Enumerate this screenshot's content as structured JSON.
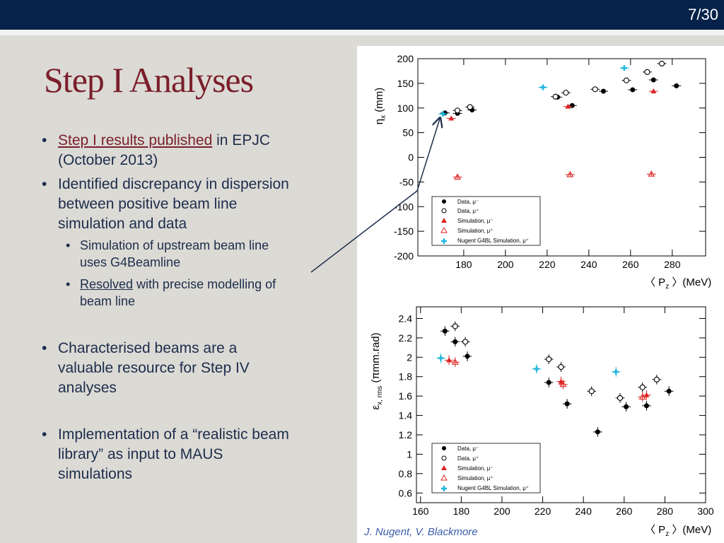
{
  "slide": {
    "number": "7/30",
    "title": "Step I Analyses",
    "credit": "J. Nugent, V. Blackmore"
  },
  "bullets": {
    "b1_link": "Step I results published",
    "b1_rest": " in EPJC",
    "b1_line2": "(October 2013)",
    "b2_l1": "Identified discrepancy in dispersion",
    "b2_l2": "between positive beam line",
    "b2_l3": "simulation and data",
    "s1_l1": "Simulation of upstream beam line",
    "s1_l2": "uses G4Beamline",
    "s2_link": "Resolved",
    "s2_rest": " with precise modelling of",
    "s2_l2": "beam line",
    "b3_l1": "Characterised beams are a",
    "b3_l2": "valuable resource for Step IV",
    "b3_l3": "analyses",
    "b4_l1": "Implementation of a “realistic beam",
    "b4_l2": "library” as input to MAUS",
    "b4_l3": "simulations"
  },
  "legend_labels": {
    "data_mu_minus": "Data, μ⁻",
    "data_mu_plus": "Data, μ⁺",
    "sim_mu_minus": "Simulation, μ⁻",
    "sim_mu_plus": "Simulation, μ⁺",
    "nugent": "Nugent G4BL Simulation, μ⁺"
  },
  "colors": {
    "data": "#000000",
    "simulation": "#dd2222",
    "nugent": "#22b5dd",
    "title": "#7a1f2b",
    "text": "#1c2d4b",
    "bar": "#07224a"
  },
  "chart_data": [
    {
      "type": "scatter",
      "ylabel": "ηx (mm)",
      "xlabel": "〈 Pz 〉(MeV)",
      "xlim": [
        158,
        296
      ],
      "ylim": [
        -200,
        200
      ],
      "xticks": [
        180,
        200,
        220,
        240,
        260,
        280
      ],
      "yticks": [
        -200,
        -150,
        -100,
        -50,
        0,
        50,
        100,
        150,
        200
      ],
      "legend_position": "bottom-center",
      "series": [
        {
          "name": "Data, μ⁻",
          "marker": "filled-circle",
          "color": "#000000",
          "x": [
            171,
            177,
            184,
            225,
            232,
            247,
            261,
            271,
            282
          ],
          "y": [
            90,
            89,
            96,
            122,
            105,
            134,
            137,
            157,
            145
          ]
        },
        {
          "name": "Data, μ⁺",
          "marker": "open-circle",
          "color": "#000000",
          "x": [
            177,
            183,
            224,
            229,
            243,
            258,
            268,
            275
          ],
          "y": [
            95,
            102,
            123,
            131,
            138,
            156,
            173,
            190
          ]
        },
        {
          "name": "Simulation, μ⁻",
          "marker": "filled-triangle",
          "color": "#dd2222",
          "x": [
            174,
            230,
            271
          ],
          "y": [
            79,
            103,
            134
          ]
        },
        {
          "name": "Simulation, μ⁺",
          "marker": "open-triangle",
          "color": "#dd2222",
          "x": [
            177,
            231,
            270
          ],
          "y": [
            -40,
            -35,
            -34
          ]
        },
        {
          "name": "Nugent G4BL Simulation, μ⁺",
          "marker": "cross",
          "color": "#22b5dd",
          "x": [
            170,
            218,
            257
          ],
          "y": [
            88,
            142,
            181
          ]
        }
      ]
    },
    {
      "type": "scatter",
      "ylabel": "εx, rms (πmm.rad)",
      "xlabel": "〈 Pz 〉(MeV)",
      "xlim": [
        158,
        300
      ],
      "ylim": [
        0.5,
        2.52
      ],
      "xticks": [
        160,
        180,
        200,
        220,
        240,
        260,
        280,
        300
      ],
      "yticks": [
        0.6,
        0.8,
        1,
        1.2,
        1.4,
        1.6,
        1.8,
        2,
        2.2,
        2.4
      ],
      "legend_position": "bottom-left",
      "series": [
        {
          "name": "Data, μ⁻",
          "marker": "filled-circle",
          "color": "#000000",
          "x": [
            172,
            177,
            183,
            223,
            232,
            247,
            261,
            271,
            282
          ],
          "y": [
            2.27,
            2.16,
            2.01,
            1.74,
            1.52,
            1.23,
            1.49,
            1.5,
            1.65
          ]
        },
        {
          "name": "Data, μ⁺",
          "marker": "open-circle",
          "color": "#000000",
          "x": [
            177,
            182,
            223,
            229,
            244,
            258,
            269,
            276
          ],
          "y": [
            2.32,
            2.16,
            1.98,
            1.9,
            1.65,
            1.58,
            1.69,
            1.77
          ]
        },
        {
          "name": "Simulation, μ⁻",
          "marker": "filled-triangle",
          "color": "#dd2222",
          "x": [
            174,
            229,
            271
          ],
          "y": [
            1.97,
            1.75,
            1.61
          ]
        },
        {
          "name": "Simulation, μ⁺",
          "marker": "open-triangle",
          "color": "#dd2222",
          "x": [
            177,
            230,
            269
          ],
          "y": [
            1.95,
            1.72,
            1.59
          ]
        },
        {
          "name": "Nugent G4BL Simulation, μ⁺",
          "marker": "cross",
          "color": "#22b5dd",
          "x": [
            170,
            217,
            256
          ],
          "y": [
            1.99,
            1.88,
            1.85
          ]
        }
      ]
    }
  ]
}
